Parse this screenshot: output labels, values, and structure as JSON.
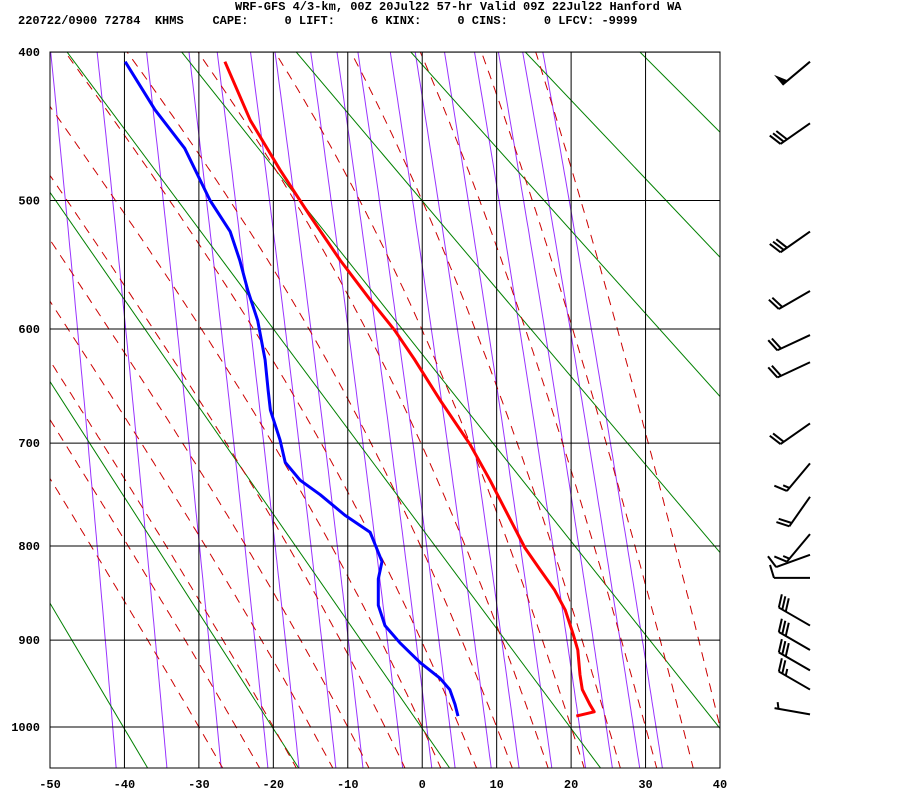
{
  "header": {
    "title": "WRF-GFS 4/3-km, 00Z 20Jul22 57-hr Valid 09Z 22Jul22 Hanford WA",
    "datetime": "220722/0900",
    "station_number": "72784",
    "station_id": "KHMS",
    "cape_label": "CAPE:",
    "cape": "0",
    "lift_label": "LIFT:",
    "lift": "6",
    "kinx_label": "KINX:",
    "kinx": "0",
    "cins_label": "CINS:",
    "cins": "0",
    "lfcv_label": "LFCV:",
    "lfcv": "-9999"
  },
  "chart_data": {
    "type": "line",
    "subtype": "thermodynamic sounding diagram",
    "title": "WRF-GFS 4/3-km, 00Z 20Jul22 57-hr Valid 09Z 22Jul22 Hanford WA",
    "xlabel": "",
    "ylabel": "",
    "xlim": [
      -50,
      40
    ],
    "ylim_pressure": [
      1050,
      400
    ],
    "x_ticks": [
      "-50",
      "-40",
      "-30",
      "-20",
      "-10",
      "0",
      "10",
      "20",
      "30",
      "40"
    ],
    "y_ticks": [
      "400",
      "500",
      "600",
      "700",
      "800",
      "900",
      "1000"
    ],
    "grid": true,
    "colors": {
      "temperature": "#ff0000",
      "dewpoint": "#0000ff",
      "dry_adiabat": "#008000",
      "moist_adiabat": "#cc0000",
      "mixing_ratio": "#9933ff",
      "grid": "#000000",
      "wind_barb": "#000000"
    },
    "series": [
      {
        "key": "temperature",
        "pressure": [
          987,
          982,
          973,
          956,
          939,
          911,
          894,
          867,
          846,
          824,
          802,
          773,
          735,
          701,
          661,
          626,
          601,
          576,
          545,
          511,
          478,
          444,
          406
        ],
        "values": [
          20.7,
          23.1,
          22.5,
          21.5,
          21.2,
          20.9,
          20.3,
          19.2,
          17.8,
          15.8,
          13.8,
          11.8,
          9.1,
          6.4,
          2.4,
          -1.0,
          -3.7,
          -7.0,
          -11.0,
          -15.1,
          -19.1,
          -23.1,
          -26.5
        ]
      },
      {
        "key": "dewpoint",
        "pressure": [
          987,
          973,
          956,
          943,
          925,
          903,
          884,
          862,
          834,
          816,
          799,
          786,
          769,
          749,
          735,
          718,
          697,
          670,
          652,
          626,
          593,
          569,
          545,
          523,
          500,
          463,
          437,
          406
        ],
        "values": [
          4.8,
          4.4,
          3.7,
          2.4,
          -0.3,
          -3.0,
          -5.0,
          -5.9,
          -5.9,
          -5.4,
          -6.3,
          -7.0,
          -10.4,
          -13.7,
          -16.4,
          -18.4,
          -19.1,
          -20.4,
          -20.7,
          -21.1,
          -22.1,
          -23.4,
          -24.5,
          -25.8,
          -28.5,
          -31.9,
          -35.9,
          -39.9
        ]
      }
    ],
    "dry_adiabats_theta_K": [
      233,
      253,
      273,
      293,
      313,
      333,
      353,
      373,
      393,
      413,
      433,
      453
    ],
    "moist_adiabats_T1000_C": [
      -30,
      -25,
      -20,
      -15,
      -10,
      -5,
      0,
      5,
      10,
      15,
      20,
      25,
      30,
      35,
      40
    ],
    "mixing_ratio_lines_gkg": [
      0.1,
      0.2,
      0.4,
      0.7,
      1,
      1.5,
      2,
      3,
      4,
      5,
      7,
      9,
      12,
      16,
      20,
      25,
      30
    ],
    "wind_barbs": [
      {
        "pressure": 406,
        "direction": 230,
        "speed_kt": 50
      },
      {
        "pressure": 446,
        "direction": 235,
        "speed_kt": 30
      },
      {
        "pressure": 523,
        "direction": 235,
        "speed_kt": 30
      },
      {
        "pressure": 569,
        "direction": 240,
        "speed_kt": 20
      },
      {
        "pressure": 605,
        "direction": 245,
        "speed_kt": 20
      },
      {
        "pressure": 628,
        "direction": 245,
        "speed_kt": 20
      },
      {
        "pressure": 682,
        "direction": 235,
        "speed_kt": 20
      },
      {
        "pressure": 719,
        "direction": 220,
        "speed_kt": 15
      },
      {
        "pressure": 751,
        "direction": 215,
        "speed_kt": 20
      },
      {
        "pressure": 788,
        "direction": 220,
        "speed_kt": 15
      },
      {
        "pressure": 809,
        "direction": 250,
        "speed_kt": 10
      },
      {
        "pressure": 833,
        "direction": 270,
        "speed_kt": 10
      },
      {
        "pressure": 884,
        "direction": 300,
        "speed_kt": 30
      },
      {
        "pressure": 911,
        "direction": 300,
        "speed_kt": 30
      },
      {
        "pressure": 934,
        "direction": 300,
        "speed_kt": 30
      },
      {
        "pressure": 956,
        "direction": 300,
        "speed_kt": 25
      },
      {
        "pressure": 985,
        "direction": 280,
        "speed_kt": 5
      }
    ]
  }
}
